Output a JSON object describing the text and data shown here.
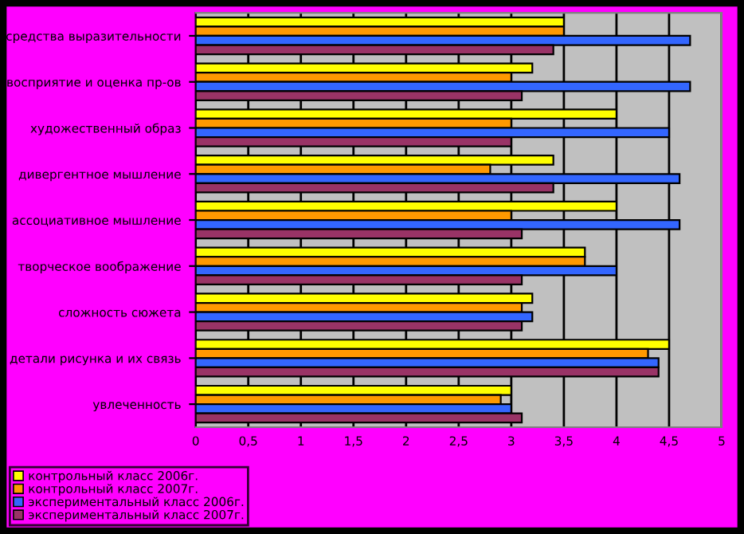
{
  "chart_data": {
    "type": "bar",
    "orientation": "horizontal",
    "categories": [
      "средства выразительности",
      "восприятие и оценка пр-ов",
      "художественный образ",
      "дивергентное мышление",
      "ассоциативное мышление",
      "творческое воображение",
      "сложность сюжета",
      "детали рисунка и их связь",
      "увлеченность"
    ],
    "series": [
      {
        "name": "контрольный класс 2006г.",
        "color": "#ffff00",
        "values": [
          3.5,
          3.2,
          4.0,
          3.4,
          4.0,
          3.7,
          3.2,
          4.5,
          3.0
        ]
      },
      {
        "name": "контрольный класс 2007г.",
        "color": "#ff9900",
        "values": [
          3.5,
          3.0,
          3.0,
          2.8,
          3.0,
          3.7,
          3.1,
          4.3,
          2.9
        ]
      },
      {
        "name": "экспериментальный класс 2006г.",
        "color": "#3366ff",
        "values": [
          4.7,
          4.7,
          4.5,
          4.6,
          4.6,
          4.0,
          3.2,
          4.4,
          3.0
        ]
      },
      {
        "name": "экспериментальный класс 2007г.",
        "color": "#993366",
        "values": [
          3.4,
          3.1,
          3.0,
          3.4,
          3.1,
          3.1,
          3.1,
          4.4,
          3.1
        ]
      }
    ],
    "xlim": [
      0,
      5
    ],
    "xticks": [
      0,
      {
        "value": 0.5,
        "label": "0,5"
      },
      1,
      {
        "value": 1.5,
        "label": "1,5"
      },
      2,
      {
        "value": 2.5,
        "label": "2,5"
      },
      3,
      {
        "value": 3.5,
        "label": "3,5"
      },
      4,
      {
        "value": 4.5,
        "label": "4,5"
      },
      5
    ],
    "grid": "x",
    "legend": "bottom left"
  }
}
